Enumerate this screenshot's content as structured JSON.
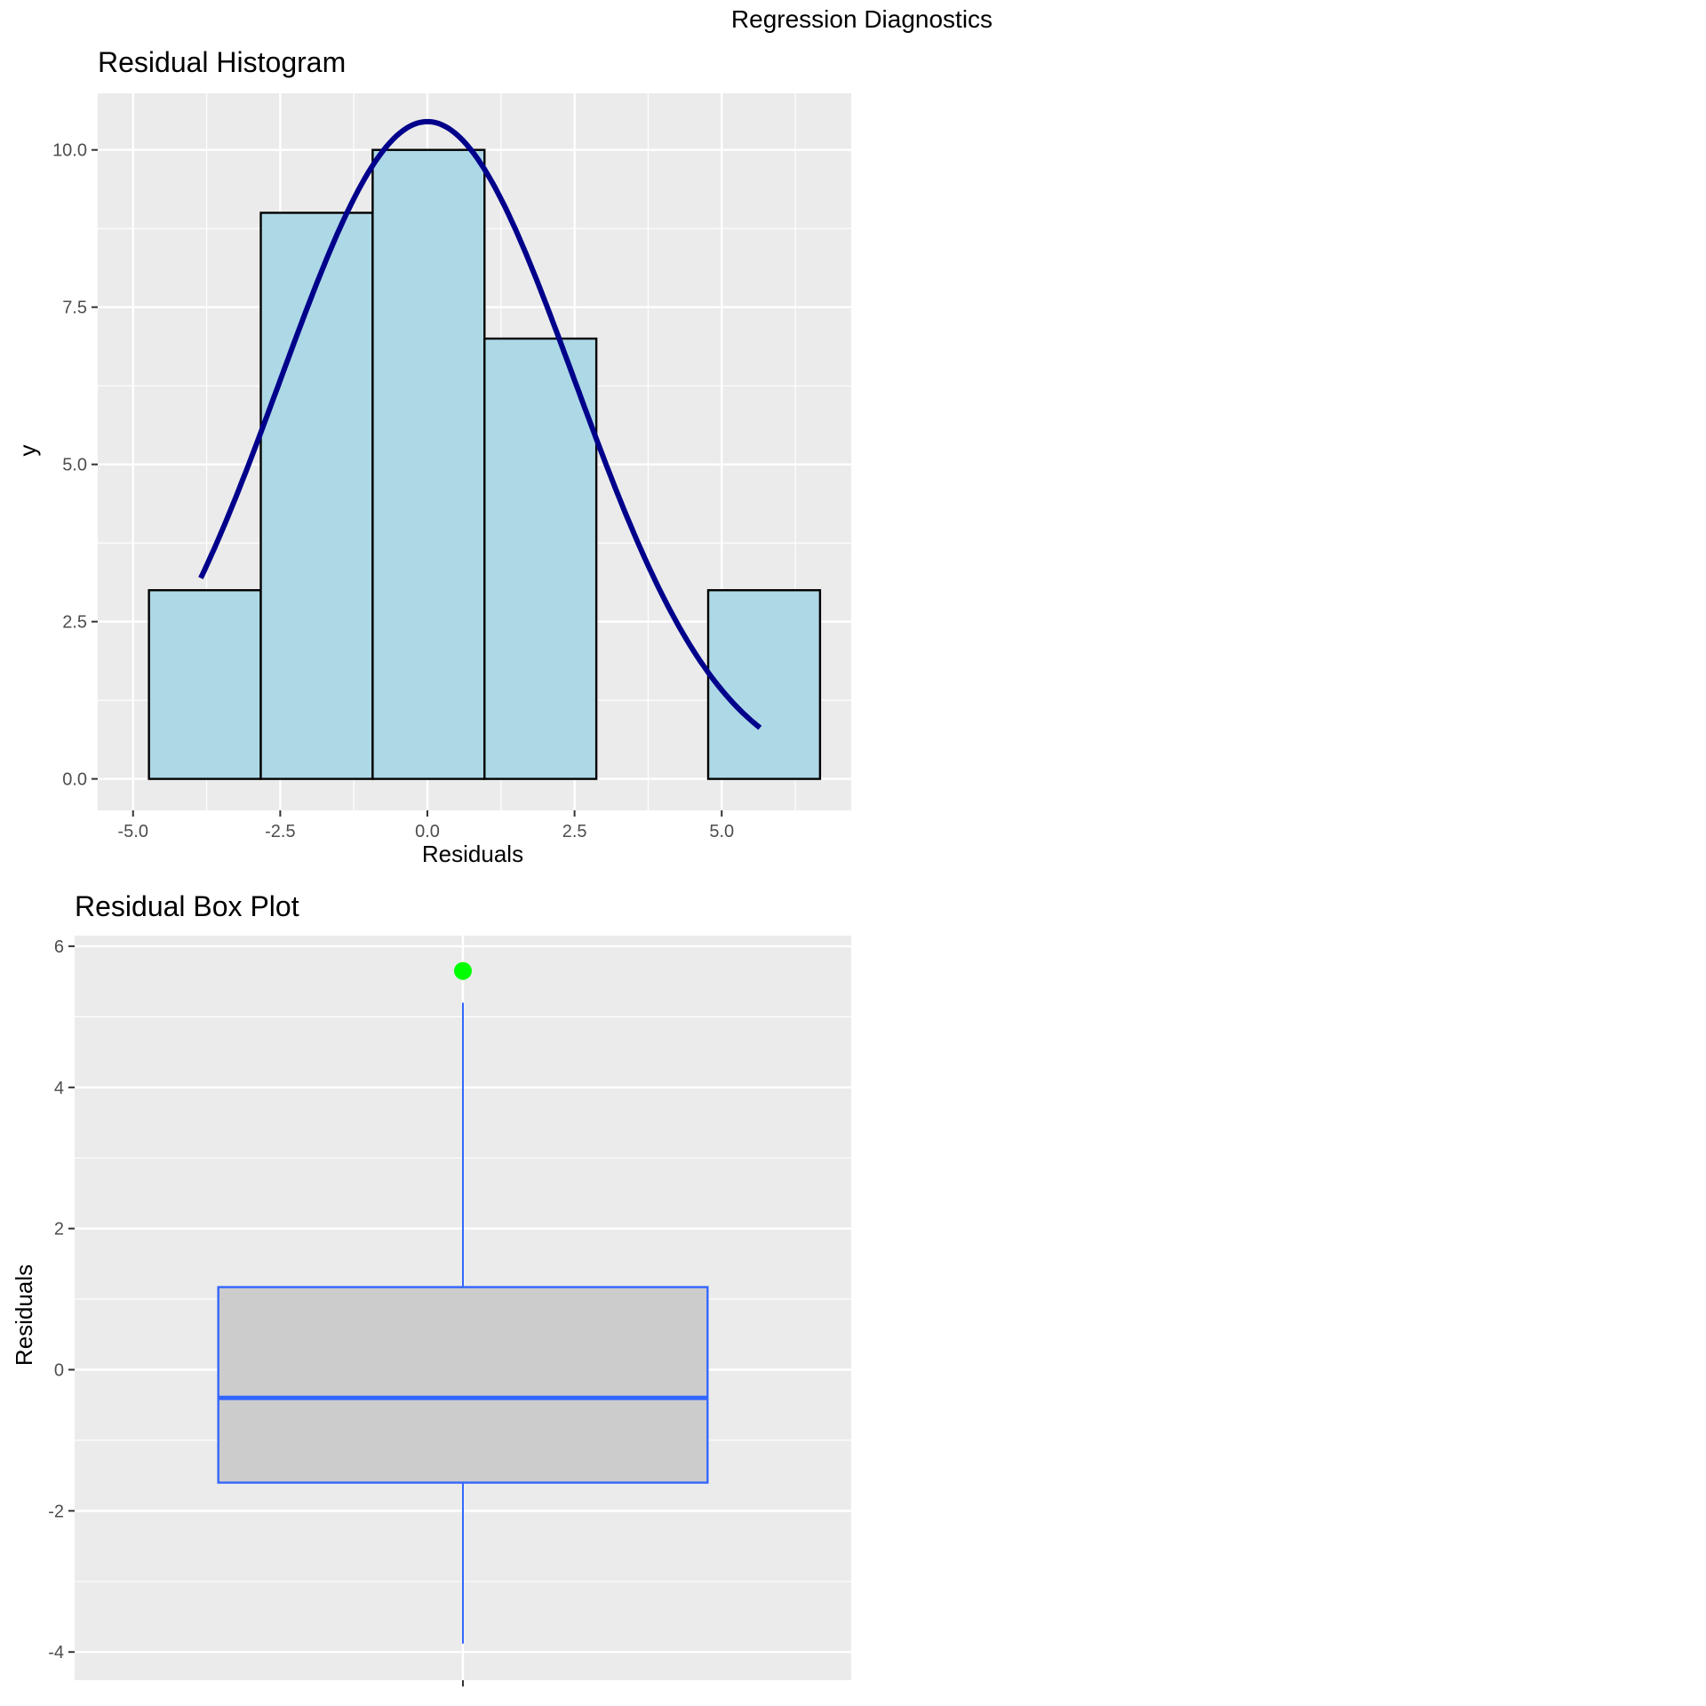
{
  "figure": {
    "title": "Regression Diagnostics"
  },
  "colors": {
    "panel_bg": "#ebebeb",
    "grid": "#ffffff",
    "bar_fill": "#add8e6",
    "bar_edge": "#000000",
    "density_line": "#00008b",
    "box_fill": "#cccccc",
    "box_line": "#3366ff",
    "outlier": "#00ff00",
    "tick_text": "#4d4d4d"
  },
  "chart_data": [
    {
      "type": "bar",
      "title": "Residual Histogram",
      "xlabel": "Residuals",
      "ylabel": "y",
      "xlim": [
        -5.6,
        7.2
      ],
      "ylim": [
        -0.5,
        10.9
      ],
      "xticks": [
        -5.0,
        -2.5,
        0.0,
        2.5,
        5.0
      ],
      "xtick_labels": [
        "-5.0",
        "-2.5",
        "0.0",
        "2.5",
        "5.0"
      ],
      "yticks": [
        0.0,
        2.5,
        5.0,
        7.5,
        10.0
      ],
      "ytick_labels": [
        "0.0",
        "2.5",
        "5.0",
        "7.5",
        "10.0"
      ],
      "bins": [
        {
          "x0": -4.73,
          "x1": -2.83,
          "count": 3
        },
        {
          "x0": -2.83,
          "x1": -0.93,
          "count": 9
        },
        {
          "x0": -0.93,
          "x1": 0.97,
          "count": 10
        },
        {
          "x0": 0.97,
          "x1": 2.87,
          "count": 7
        },
        {
          "x0": 2.87,
          "x1": 4.77,
          "count": 0
        },
        {
          "x0": 4.77,
          "x1": 6.67,
          "count": 3
        }
      ],
      "overlay": {
        "type": "line",
        "shape": "normal density scaled to counts",
        "mean": 0.0,
        "sd": 2.5,
        "x_range": [
          -3.85,
          5.65
        ],
        "peak": 10.45
      },
      "grid": true
    },
    {
      "type": "box",
      "title": "Residual Box Plot",
      "xlabel": "",
      "ylabel": "Residuals",
      "ylim": [
        -4.4,
        6.15
      ],
      "yticks": [
        -4,
        -2,
        0,
        2,
        4,
        6
      ],
      "ytick_labels": [
        "-4",
        "-2",
        "0",
        "2",
        "4",
        "6"
      ],
      "box": {
        "lower_whisker": -3.88,
        "q1": -1.6,
        "median": -0.4,
        "q3": 1.17,
        "upper_whisker": 5.2
      },
      "outliers": [
        5.65
      ],
      "grid": true
    }
  ]
}
